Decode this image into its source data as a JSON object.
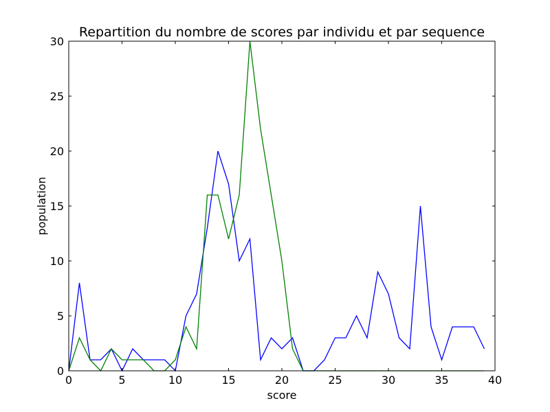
{
  "chart_data": {
    "type": "line",
    "title": "Repartition du nombre de scores par individu et par sequence",
    "xlabel": "score",
    "ylabel": "population",
    "xlim": [
      0,
      40
    ],
    "ylim": [
      0,
      30
    ],
    "xticks": [
      0,
      5,
      10,
      15,
      20,
      25,
      30,
      35,
      40
    ],
    "yticks": [
      0,
      5,
      10,
      15,
      20,
      25,
      30
    ],
    "grid": false,
    "x": [
      0,
      1,
      2,
      3,
      4,
      5,
      6,
      7,
      8,
      9,
      10,
      11,
      12,
      13,
      14,
      15,
      16,
      17,
      18,
      19,
      20,
      21,
      22,
      23,
      24,
      25,
      26,
      27,
      28,
      29,
      30,
      31,
      32,
      33,
      34,
      35,
      36,
      37,
      38,
      39
    ],
    "series": [
      {
        "color": "#0000ff",
        "values": [
          0,
          8,
          1,
          1,
          2,
          0,
          2,
          1,
          1,
          1,
          0,
          5,
          7,
          13,
          20,
          17,
          10,
          12,
          1,
          3,
          2,
          3,
          0,
          0,
          1,
          3,
          3,
          5,
          3,
          9,
          7,
          3,
          2,
          15,
          4,
          1,
          4,
          4,
          4,
          2
        ]
      },
      {
        "color": "#008000",
        "values": [
          0,
          3,
          1,
          0,
          2,
          1,
          1,
          1,
          0,
          0,
          1,
          4,
          2,
          16,
          16,
          12,
          16,
          30,
          22,
          16,
          10,
          2,
          0,
          0,
          0,
          0,
          0,
          0,
          0,
          0,
          0,
          0,
          0,
          0,
          0,
          0,
          0,
          0,
          0,
          0
        ]
      }
    ]
  }
}
